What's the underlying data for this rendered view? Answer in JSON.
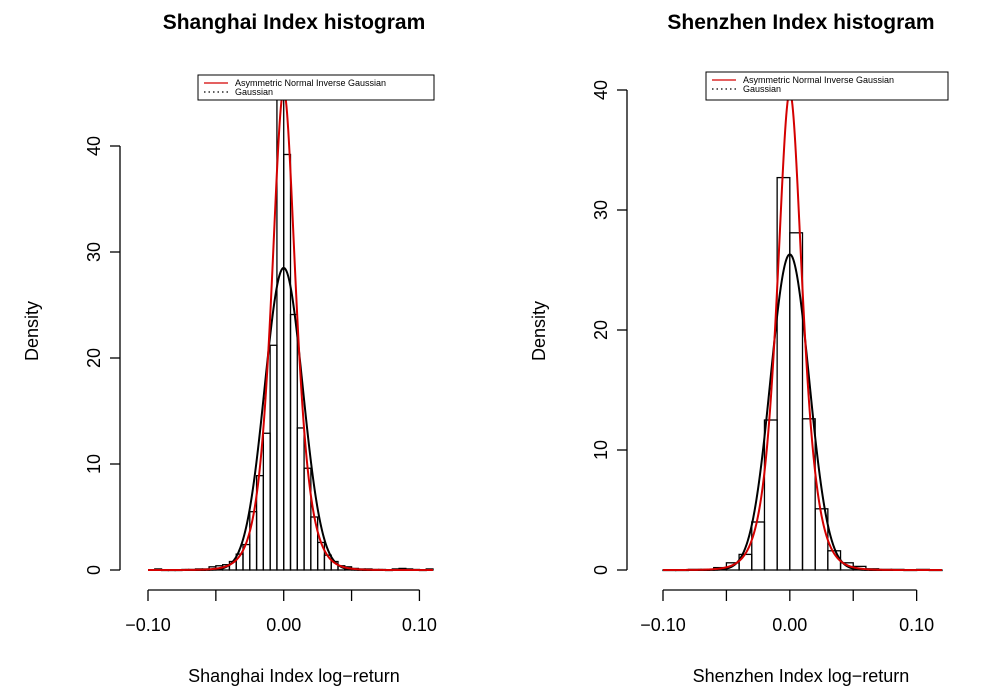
{
  "chart_data": [
    {
      "type": "histogram",
      "title": "Shanghai Index histogram",
      "xlabel": "Shanghai Index log−return",
      "ylabel": "Density",
      "xlim": [
        -0.1,
        0.11
      ],
      "ylim": [
        0,
        45
      ],
      "x_ticks": [
        -0.1,
        -0.05,
        0.0,
        0.05,
        0.1
      ],
      "x_tick_labels": [
        "−0.10",
        "0.00",
        "0.10"
      ],
      "labeled_x_ticks": [
        -0.1,
        0.0,
        0.1
      ],
      "y_ticks": [
        0,
        10,
        20,
        30,
        40
      ],
      "y_tick_labels": [
        "0",
        "10",
        "20",
        "30",
        "40"
      ],
      "bin_width": 0.005,
      "bins": [
        {
          "x0": -0.095,
          "x1": -0.09,
          "density": 0.1
        },
        {
          "x0": -0.09,
          "x1": -0.085,
          "density": 0
        },
        {
          "x0": -0.085,
          "x1": -0.08,
          "density": 0
        },
        {
          "x0": -0.08,
          "x1": -0.075,
          "density": 0
        },
        {
          "x0": -0.075,
          "x1": -0.07,
          "density": 0.05
        },
        {
          "x0": -0.07,
          "x1": -0.065,
          "density": 0.05
        },
        {
          "x0": -0.065,
          "x1": -0.06,
          "density": 0.1
        },
        {
          "x0": -0.06,
          "x1": -0.055,
          "density": 0.1
        },
        {
          "x0": -0.055,
          "x1": -0.05,
          "density": 0.3
        },
        {
          "x0": -0.05,
          "x1": -0.045,
          "density": 0.4
        },
        {
          "x0": -0.045,
          "x1": -0.04,
          "density": 0.5
        },
        {
          "x0": -0.04,
          "x1": -0.035,
          "density": 0.8
        },
        {
          "x0": -0.035,
          "x1": -0.03,
          "density": 1.5
        },
        {
          "x0": -0.03,
          "x1": -0.025,
          "density": 2.4
        },
        {
          "x0": -0.025,
          "x1": -0.02,
          "density": 5.5
        },
        {
          "x0": -0.02,
          "x1": -0.015,
          "density": 8.9
        },
        {
          "x0": -0.015,
          "x1": -0.01,
          "density": 12.9
        },
        {
          "x0": -0.01,
          "x1": -0.005,
          "density": 21.2
        },
        {
          "x0": -0.005,
          "x1": 0.0,
          "density": 45.0
        },
        {
          "x0": 0.0,
          "x1": 0.005,
          "density": 39.2
        },
        {
          "x0": 0.005,
          "x1": 0.01,
          "density": 24.1
        },
        {
          "x0": 0.01,
          "x1": 0.015,
          "density": 13.4
        },
        {
          "x0": 0.015,
          "x1": 0.02,
          "density": 9.6
        },
        {
          "x0": 0.02,
          "x1": 0.025,
          "density": 5.0
        },
        {
          "x0": 0.025,
          "x1": 0.03,
          "density": 2.6
        },
        {
          "x0": 0.03,
          "x1": 0.035,
          "density": 1.4
        },
        {
          "x0": 0.035,
          "x1": 0.04,
          "density": 0.8
        },
        {
          "x0": 0.04,
          "x1": 0.045,
          "density": 0.4
        },
        {
          "x0": 0.045,
          "x1": 0.05,
          "density": 0.3
        },
        {
          "x0": 0.05,
          "x1": 0.055,
          "density": 0.15
        },
        {
          "x0": 0.055,
          "x1": 0.06,
          "density": 0.1
        },
        {
          "x0": 0.06,
          "x1": 0.065,
          "density": 0.1
        },
        {
          "x0": 0.065,
          "x1": 0.07,
          "density": 0.05
        },
        {
          "x0": 0.07,
          "x1": 0.075,
          "density": 0.05
        },
        {
          "x0": 0.075,
          "x1": 0.08,
          "density": 0
        },
        {
          "x0": 0.08,
          "x1": 0.085,
          "density": 0.1
        },
        {
          "x0": 0.085,
          "x1": 0.09,
          "density": 0.15
        },
        {
          "x0": 0.09,
          "x1": 0.095,
          "density": 0.1
        },
        {
          "x0": 0.095,
          "x1": 0.1,
          "density": 0.05
        },
        {
          "x0": 0.1,
          "x1": 0.105,
          "density": 0
        },
        {
          "x0": 0.105,
          "x1": 0.11,
          "density": 0.1
        }
      ],
      "series": [
        {
          "name": "Asymmetric Normal Inverse Gaussian",
          "color": "#d40000",
          "line": "solid",
          "peak_x": 0.0,
          "peak_density": 45.2,
          "width_scale": 0.0085
        },
        {
          "name": "Gaussian",
          "color": "#000000",
          "line": "dotted",
          "mean": 0.0,
          "sd": 0.014,
          "peak_density": 28.5
        }
      ],
      "legend": {
        "position": "top-right",
        "entries": [
          "Asymmetric Normal Inverse Gaussian",
          "Gaussian"
        ]
      }
    },
    {
      "type": "histogram",
      "title": "Shenzhen Index histogram",
      "xlabel": "Shenzhen Index log−return",
      "ylabel": "Density",
      "xlim": [
        -0.1,
        0.12
      ],
      "ylim": [
        0,
        40
      ],
      "x_ticks": [
        -0.1,
        -0.05,
        0.0,
        0.05,
        0.1
      ],
      "x_tick_labels": [
        "−0.10",
        "0.00",
        "0.10"
      ],
      "labeled_x_ticks": [
        -0.1,
        0.0,
        0.1
      ],
      "y_ticks": [
        0,
        10,
        20,
        30,
        40
      ],
      "y_tick_labels": [
        "0",
        "10",
        "20",
        "30",
        "40"
      ],
      "bin_width": 0.01,
      "bins": [
        {
          "x0": -0.1,
          "x1": -0.09,
          "density": 0
        },
        {
          "x0": -0.09,
          "x1": -0.08,
          "density": 0
        },
        {
          "x0": -0.08,
          "x1": -0.07,
          "density": 0.05
        },
        {
          "x0": -0.07,
          "x1": -0.06,
          "density": 0.05
        },
        {
          "x0": -0.06,
          "x1": -0.05,
          "density": 0.2
        },
        {
          "x0": -0.05,
          "x1": -0.04,
          "density": 0.6
        },
        {
          "x0": -0.04,
          "x1": -0.03,
          "density": 1.3
        },
        {
          "x0": -0.03,
          "x1": -0.02,
          "density": 4.0
        },
        {
          "x0": -0.02,
          "x1": -0.01,
          "density": 12.5
        },
        {
          "x0": -0.01,
          "x1": 0.0,
          "density": 32.7
        },
        {
          "x0": 0.0,
          "x1": 0.01,
          "density": 28.1
        },
        {
          "x0": 0.01,
          "x1": 0.02,
          "density": 12.6
        },
        {
          "x0": 0.02,
          "x1": 0.03,
          "density": 5.1
        },
        {
          "x0": 0.03,
          "x1": 0.04,
          "density": 1.6
        },
        {
          "x0": 0.04,
          "x1": 0.05,
          "density": 0.6
        },
        {
          "x0": 0.05,
          "x1": 0.06,
          "density": 0.3
        },
        {
          "x0": 0.06,
          "x1": 0.07,
          "density": 0.1
        },
        {
          "x0": 0.07,
          "x1": 0.08,
          "density": 0.05
        },
        {
          "x0": 0.08,
          "x1": 0.09,
          "density": 0.05
        },
        {
          "x0": 0.09,
          "x1": 0.1,
          "density": 0
        },
        {
          "x0": 0.1,
          "x1": 0.11,
          "density": 0.05
        },
        {
          "x0": 0.11,
          "x1": 0.12,
          "density": 0
        }
      ],
      "series": [
        {
          "name": "Asymmetric Normal Inverse Gaussian",
          "color": "#d40000",
          "line": "solid",
          "peak_x": 0.0,
          "peak_density": 39.8,
          "width_scale": 0.0095
        },
        {
          "name": "Gaussian",
          "color": "#000000",
          "line": "dotted",
          "mean": 0.0,
          "sd": 0.0152,
          "peak_density": 26.3
        }
      ],
      "legend": {
        "position": "top-right",
        "entries": [
          "Asymmetric Normal Inverse Gaussian",
          "Gaussian"
        ]
      }
    }
  ]
}
